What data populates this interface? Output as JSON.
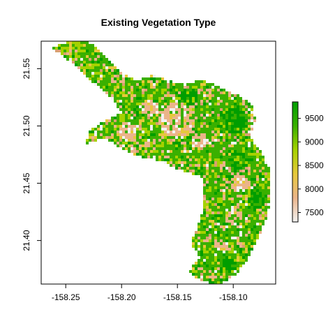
{
  "chart_data": {
    "type": "heatmap",
    "title": "Existing Vegetation Type",
    "xlabel": "",
    "ylabel": "",
    "xlim": [
      -158.272,
      -158.062
    ],
    "ylim": [
      21.362,
      21.574
    ],
    "x_ticks": [
      -158.25,
      -158.2,
      -158.15,
      -158.1
    ],
    "x_tick_labels": [
      "-158.25",
      "-158.20",
      "-158.15",
      "-158.10"
    ],
    "y_ticks": [
      21.4,
      21.45,
      21.5,
      21.55
    ],
    "y_tick_labels": [
      "21.40",
      "21.45",
      "21.50",
      "21.55"
    ],
    "legend": {
      "type": "colorbar",
      "placement": "right",
      "range": [
        7300,
        9850
      ],
      "ticks": [
        7500,
        8000,
        8500,
        9000,
        9500
      ],
      "tick_labels": [
        "7500",
        "8000",
        "8500",
        "9000",
        "9500"
      ],
      "colors": [
        "#f2f2f2",
        "#ebb48a",
        "#e6c83c",
        "#a5d200",
        "#3ab000",
        "#009e00"
      ]
    },
    "region_outline": [
      [
        -158.25,
        21.573
      ],
      [
        -158.24,
        21.575
      ],
      [
        -158.226,
        21.572
      ],
      [
        -158.212,
        21.558
      ],
      [
        -158.2,
        21.546
      ],
      [
        -158.186,
        21.54
      ],
      [
        -158.172,
        21.544
      ],
      [
        -158.158,
        21.54
      ],
      [
        -158.144,
        21.536
      ],
      [
        -158.13,
        21.54
      ],
      [
        -158.116,
        21.536
      ],
      [
        -158.104,
        21.53
      ],
      [
        -158.092,
        21.525
      ],
      [
        -158.082,
        21.516
      ],
      [
        -158.08,
        21.505
      ],
      [
        -158.085,
        21.49
      ],
      [
        -158.075,
        21.478
      ],
      [
        -158.066,
        21.46
      ],
      [
        -158.066,
        21.44
      ],
      [
        -158.07,
        21.42
      ],
      [
        -158.078,
        21.402
      ],
      [
        -158.086,
        21.385
      ],
      [
        -158.098,
        21.37
      ],
      [
        -158.112,
        21.362
      ],
      [
        -158.128,
        21.364
      ],
      [
        -158.14,
        21.372
      ],
      [
        -158.13,
        21.386
      ],
      [
        -158.138,
        21.398
      ],
      [
        -158.132,
        21.41
      ],
      [
        -158.128,
        21.425
      ],
      [
        -158.126,
        21.44
      ],
      [
        -158.128,
        21.455
      ],
      [
        -158.148,
        21.462
      ],
      [
        -158.168,
        21.47
      ],
      [
        -158.188,
        21.474
      ],
      [
        -158.2,
        21.48
      ],
      [
        -158.216,
        21.49
      ],
      [
        -158.232,
        21.484
      ],
      [
        -158.228,
        21.496
      ],
      [
        -158.214,
        21.505
      ],
      [
        -158.2,
        21.512
      ],
      [
        -158.21,
        21.525
      ],
      [
        -158.228,
        21.54
      ],
      [
        -158.246,
        21.556
      ],
      [
        -158.262,
        21.568
      ]
    ],
    "barren_patches": [
      {
        "x": -158.15,
        "y": 21.505,
        "r": 0.016
      },
      {
        "x": -158.195,
        "y": 21.495,
        "r": 0.009
      },
      {
        "x": -158.175,
        "y": 21.515,
        "r": 0.008
      },
      {
        "x": -158.195,
        "y": 21.47,
        "r": 0.006
      },
      {
        "x": -158.095,
        "y": 21.45,
        "r": 0.008
      },
      {
        "x": -158.1,
        "y": 21.42,
        "r": 0.007
      },
      {
        "x": -158.13,
        "y": 21.488,
        "r": 0.007
      },
      {
        "x": -158.08,
        "y": 21.5,
        "r": 0.006
      },
      {
        "x": -158.11,
        "y": 21.395,
        "r": 0.005
      }
    ],
    "dense_forest_patches": [
      {
        "x": -158.1,
        "y": 21.505,
        "r": 0.013
      },
      {
        "x": -158.095,
        "y": 21.47,
        "r": 0.009
      },
      {
        "x": -158.08,
        "y": 21.435,
        "r": 0.008
      },
      {
        "x": -158.14,
        "y": 21.525,
        "r": 0.008
      },
      {
        "x": -158.105,
        "y": 21.378,
        "r": 0.008
      }
    ]
  }
}
